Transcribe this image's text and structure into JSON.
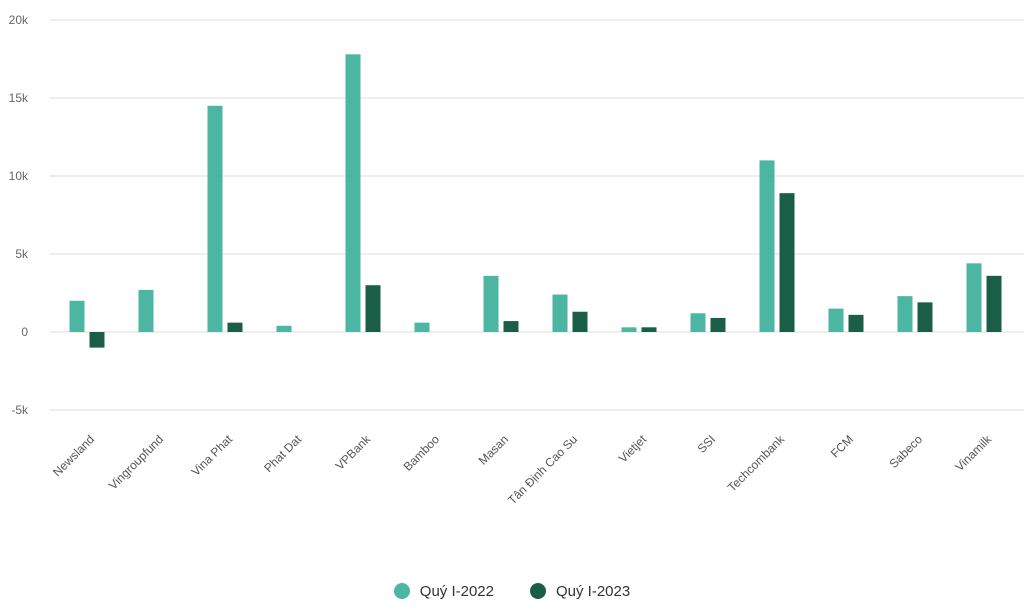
{
  "chart_data": {
    "type": "bar",
    "categories": [
      "Newsland",
      "Vingroupfund",
      "Vina Phat",
      "Phat Dat",
      "VPBank",
      "Bamboo",
      "Masan",
      "Tân Định Cao Su",
      "Vietjet",
      "SSI",
      "Techcombank",
      "FCM",
      "Sabeco",
      "Vinamilk"
    ],
    "series": [
      {
        "name": "Quý I-2022",
        "color": "#4db6a2",
        "values": [
          2.0,
          2.7,
          14.5,
          0.4,
          17.8,
          0.6,
          3.6,
          2.4,
          0.3,
          1.2,
          11.0,
          1.5,
          2.3,
          4.4
        ]
      },
      {
        "name": "Quý I-2023",
        "color": "#1b5e47",
        "values": [
          -1.0,
          0,
          0.6,
          0,
          3.0,
          0,
          0.7,
          1.3,
          0.3,
          0.9,
          8.9,
          1.1,
          1.9,
          3.6
        ]
      }
    ],
    "y_ticks": [
      -5,
      0,
      5,
      10,
      15,
      20
    ],
    "y_tick_labels": [
      "-5k",
      "0",
      "5k",
      "10k",
      "15k",
      "20k"
    ],
    "ylim": [
      -5,
      20
    ],
    "grid": true,
    "legend_position": "bottom-center"
  },
  "colors": {
    "grid": "#eeeeee",
    "series_1": "#4db6a2",
    "series_2": "#1b5e47"
  }
}
